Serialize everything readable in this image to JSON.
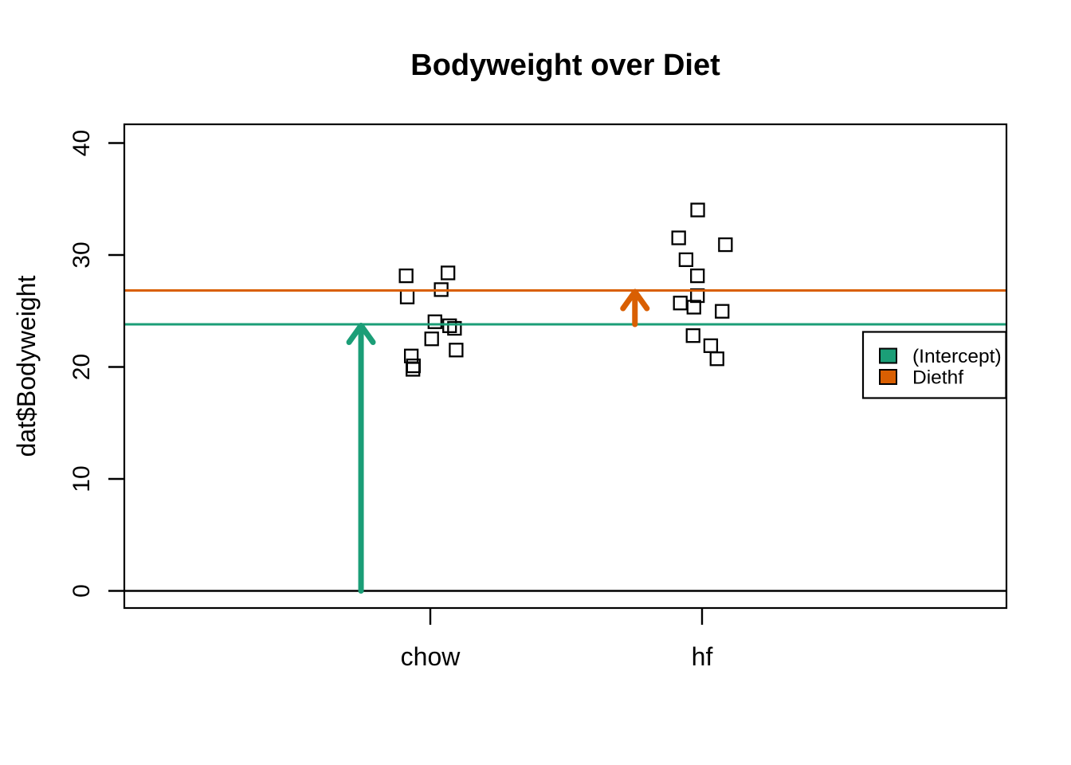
{
  "chart_data": {
    "type": "scatter",
    "title": "Bodyweight over Diet",
    "xlabel": "",
    "ylabel": "dat$Bodyweight",
    "categories": [
      "chow",
      "hf"
    ],
    "x_tick_labels": [
      "chow",
      "hf"
    ],
    "y_tick_labels": [
      "0",
      "10",
      "20",
      "30",
      "40"
    ],
    "ylim": [
      0,
      40
    ],
    "grid": false,
    "legend_position": "right",
    "point_marker": "open-square",
    "point_color": "#000000",
    "series": [
      {
        "name": "chow",
        "values": [
          21.51,
          28.14,
          24.04,
          23.45,
          23.68,
          19.79,
          28.4,
          20.98,
          22.51,
          20.1,
          26.91,
          26.25
        ],
        "jitter": [
          0.095,
          -0.089,
          0.017,
          0.089,
          0.071,
          -0.064,
          0.065,
          -0.07,
          0.005,
          -0.062,
          0.04,
          -0.085
        ]
      },
      {
        "name": "hf",
        "values": [
          25.71,
          26.37,
          22.8,
          25.34,
          24.97,
          28.14,
          29.58,
          30.92,
          34.02,
          21.9,
          31.53,
          20.73
        ],
        "jitter": [
          -0.08,
          -0.017,
          -0.033,
          -0.03,
          0.074,
          -0.017,
          -0.059,
          0.086,
          -0.016,
          0.032,
          -0.086,
          0.055
        ]
      }
    ],
    "reference_lines": [
      {
        "name": "zero-line",
        "value": 0,
        "color": "#000000",
        "width": 2.5
      },
      {
        "name": "intercept-line",
        "value": 23.81,
        "color": "#1B9E77",
        "width": 3
      },
      {
        "name": "diethf-line",
        "value": 26.83,
        "color": "#D95F02",
        "width": 3
      }
    ],
    "arrows": [
      {
        "name": "intercept-arrow",
        "category": "chow",
        "x_offset": -0.255,
        "from": 0,
        "to": 23.81,
        "color": "#1B9E77"
      },
      {
        "name": "diethf-arrow",
        "category": "hf",
        "x_offset": -0.247,
        "from": 23.81,
        "to": 26.83,
        "color": "#D95F02"
      }
    ],
    "legend": {
      "entries": [
        {
          "label": "(Intercept)",
          "color": "#1B9E77"
        },
        {
          "label": "Diethf",
          "color": "#D95F02"
        }
      ]
    }
  }
}
